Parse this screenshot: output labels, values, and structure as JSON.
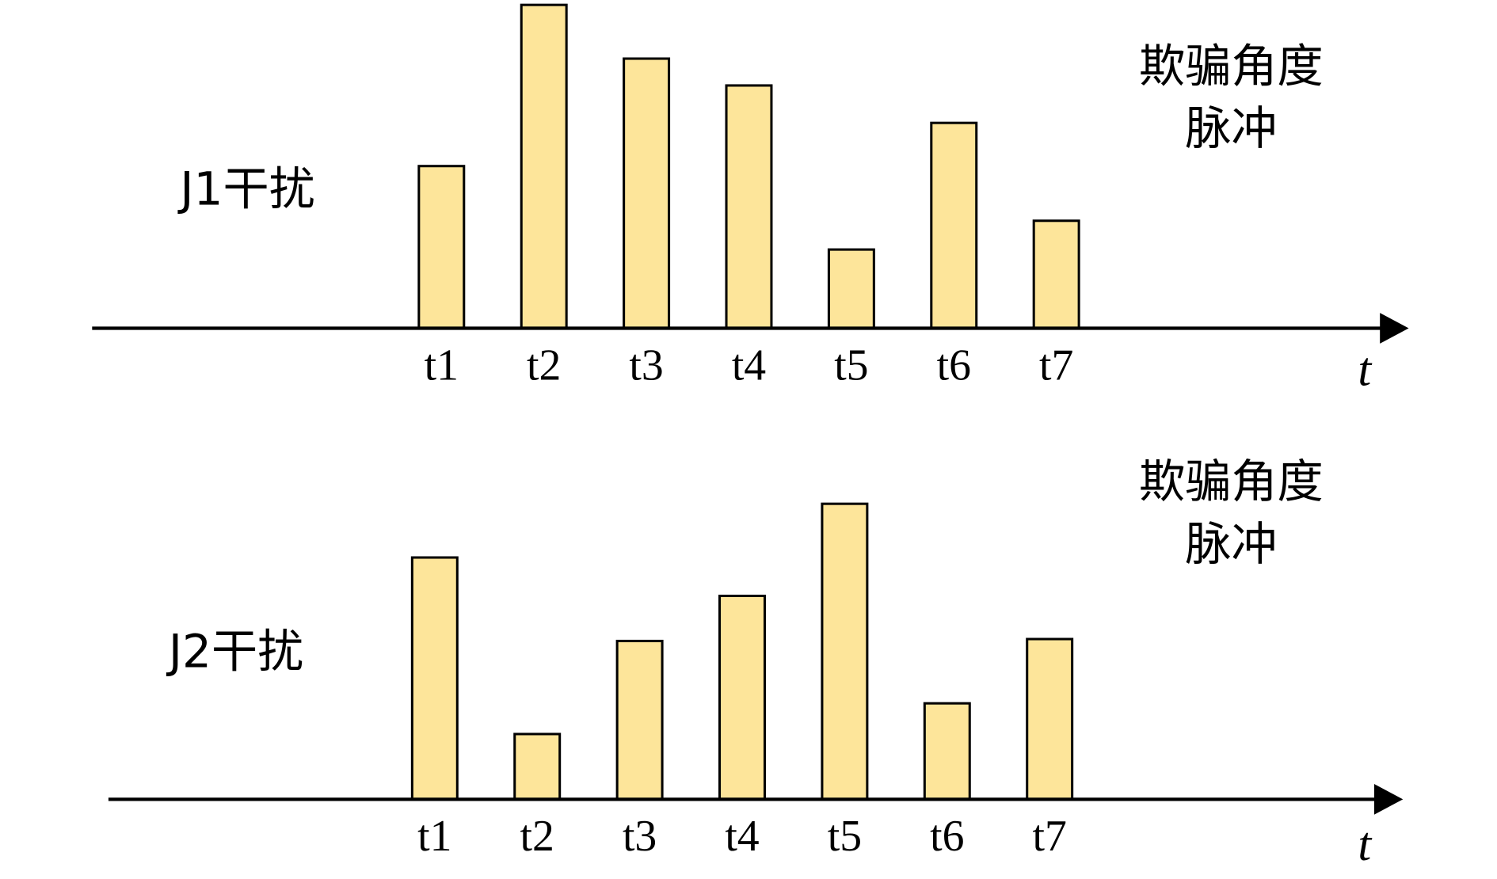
{
  "chart_data": [
    {
      "type": "bar",
      "title": "J1干扰",
      "annotation": [
        "欺骗角度",
        "脉冲"
      ],
      "x_label": "t",
      "categories": [
        "t1",
        "t2",
        "t3",
        "t4",
        "t5",
        "t6",
        "t7"
      ],
      "values": [
        169,
        337,
        281,
        253,
        82,
        214,
        112
      ],
      "color": "#fde59a"
    },
    {
      "type": "bar",
      "title": "J2干扰",
      "annotation": [
        "欺骗角度",
        "脉冲"
      ],
      "x_label": "t",
      "categories": [
        "t1",
        "t2",
        "t3",
        "t4",
        "t5",
        "t6",
        "t7"
      ],
      "values": [
        252,
        68,
        165,
        212,
        308,
        100,
        167
      ],
      "color": "#fde59a"
    }
  ]
}
